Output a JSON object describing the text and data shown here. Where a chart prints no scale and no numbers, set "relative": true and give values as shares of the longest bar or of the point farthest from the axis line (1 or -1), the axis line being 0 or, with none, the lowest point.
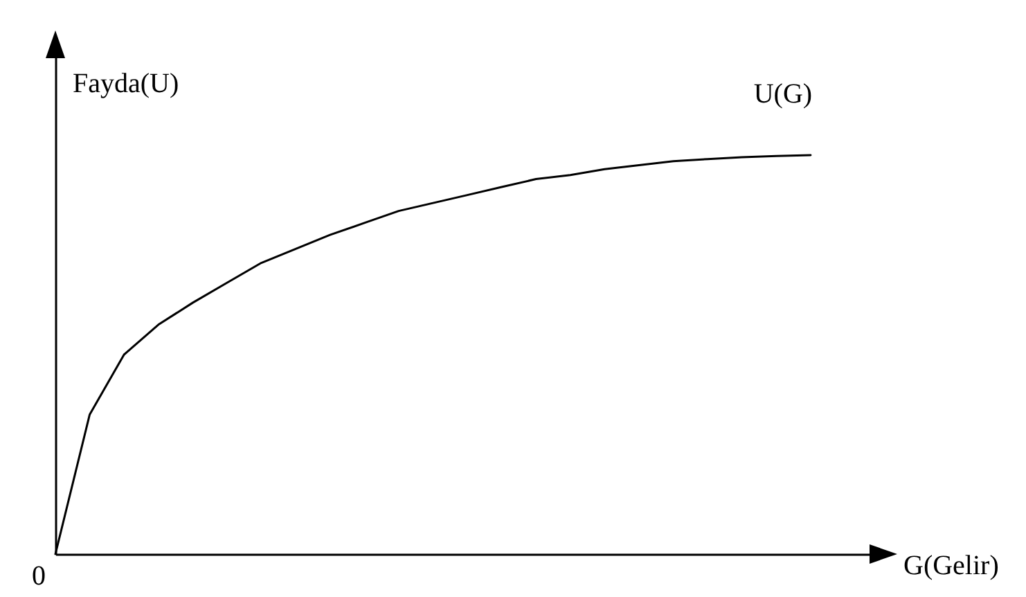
{
  "chart_data": {
    "type": "line",
    "xlabel": "G(Gelir)",
    "ylabel": "Fayda(U)",
    "relative": true,
    "categories": [
      null,
      null,
      null,
      null,
      null,
      null,
      null,
      null,
      null,
      null,
      null,
      null,
      null,
      null,
      null,
      null,
      null,
      null,
      null,
      null,
      null,
      null,
      null
    ],
    "series": [
      {
        "name": "U(G)",
        "color": "#000000",
        "values": [
          0,
          0.35,
          0.5,
          0.575,
          0.63,
          0.68,
          0.73,
          0.765,
          0.8,
          0.83,
          0.86,
          0.88,
          0.9,
          0.92,
          0.94,
          0.95,
          0.965,
          0.975,
          0.985,
          0.99,
          0.995,
          0.998,
          1
        ]
      }
    ],
    "annotations": [
      "0"
    ]
  }
}
